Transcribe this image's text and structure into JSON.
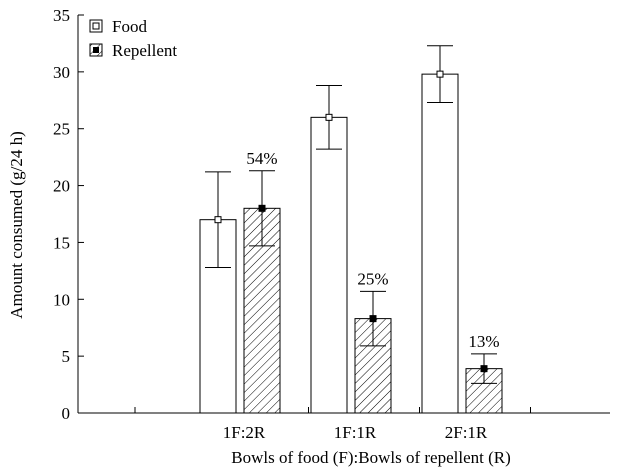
{
  "chart_data": {
    "type": "bar",
    "categories": [
      "1F:2R",
      "1F:1R",
      "2F:1R"
    ],
    "xlabel": "Bowls of food (F):Bowls of repellent (R)",
    "ylabel": "Amount consumed (g/24 h)",
    "ylim": [
      0,
      35
    ],
    "yticks": [
      0,
      5,
      10,
      15,
      20,
      25,
      30,
      35
    ],
    "grid": false,
    "legend_position": "top-left",
    "series": [
      {
        "name": "Food",
        "pattern": "open",
        "values": [
          17.0,
          26.0,
          29.8
        ],
        "error": [
          4.2,
          2.8,
          2.5
        ]
      },
      {
        "name": "Repellent",
        "pattern": "hatched",
        "values": [
          18.0,
          8.3,
          3.9
        ],
        "error": [
          3.3,
          2.4,
          1.3
        ],
        "annotations": [
          "54%",
          "25%",
          "13%"
        ]
      }
    ]
  }
}
